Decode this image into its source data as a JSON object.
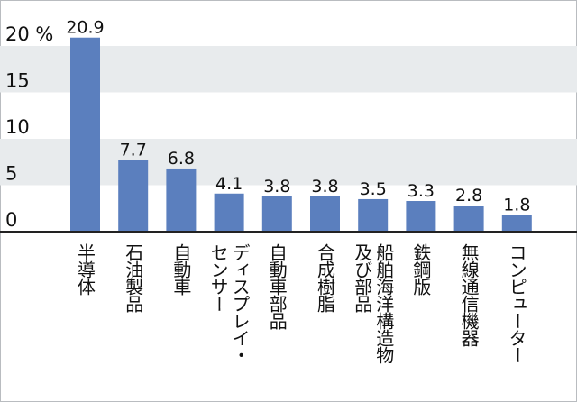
{
  "chart_data": {
    "type": "bar",
    "categories": [
      "半導体",
      "石油製品",
      "自動車",
      "ディスプレイ・センサー",
      "自動車部品",
      "合成樹脂",
      "船舶海洋構造物及び部品",
      "鉄鋼版",
      "無線通信機器",
      "コンピューター"
    ],
    "category_columns": [
      [
        "半導体"
      ],
      [
        "石油製品"
      ],
      [
        "自動車"
      ],
      [
        "センサー",
        "ディスプレイ・"
      ],
      [
        "自動車部品"
      ],
      [
        "合成樹脂"
      ],
      [
        "及び部品",
        "船舶海洋構造物"
      ],
      [
        "鉄鋼版"
      ],
      [
        "無線通信機器"
      ],
      [
        "コンピューター"
      ]
    ],
    "values": [
      20.9,
      7.7,
      6.8,
      4.1,
      3.8,
      3.8,
      3.5,
      3.3,
      2.8,
      1.8
    ],
    "value_labels": [
      "20.9",
      "7.7",
      "6.8",
      "4.1",
      "3.8",
      "3.8",
      "3.5",
      "3.3",
      "2.8",
      "1.8"
    ],
    "y_ticks": [
      0,
      5,
      10,
      15,
      20
    ],
    "y_tick_labels": [
      "0",
      "5",
      "10",
      "15",
      "20 %"
    ],
    "ylim": [
      0,
      20
    ],
    "bar_color": "#5b7fbe",
    "band_color": "#e8ebed",
    "grid": false,
    "title": "",
    "xlabel": "",
    "ylabel": ""
  }
}
